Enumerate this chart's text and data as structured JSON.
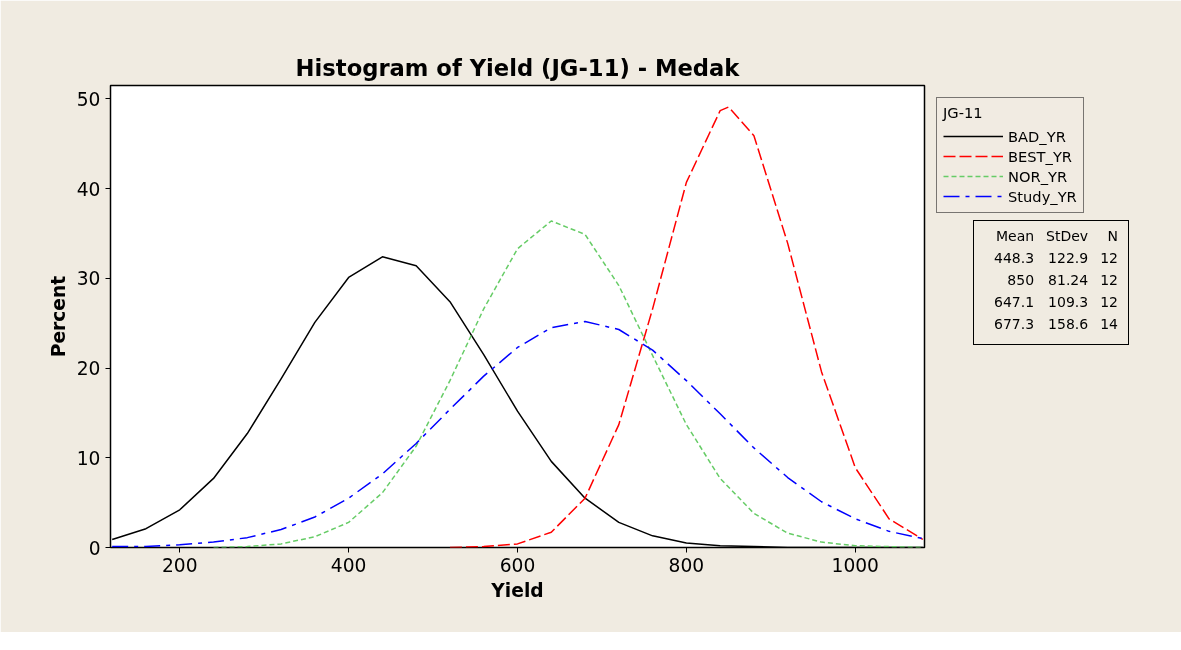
{
  "chart_data": {
    "type": "line",
    "title": "Histogram of Yield (JG-11) - Medak",
    "xlabel": "Yield",
    "ylabel": "Percent",
    "legend_title": "JG-11",
    "x": [
      120,
      160,
      200,
      240,
      280,
      320,
      360,
      400,
      440,
      480,
      520,
      560,
      600,
      640,
      680,
      720,
      760,
      800,
      840,
      880,
      920,
      960,
      1000,
      1040,
      1080
    ],
    "series": [
      {
        "name": "BAD_YR",
        "color": "#000000",
        "line_style": "solid",
        "values": [
          0.9,
          2.1,
          4.2,
          7.7,
          12.7,
          18.8,
          25.1,
          30.1,
          32.4,
          31.4,
          27.4,
          21.5,
          15.2,
          9.6,
          5.5,
          2.8,
          1.3,
          0.5,
          0.2,
          0.1,
          0,
          0,
          0,
          0,
          0
        ]
      },
      {
        "name": "BEST_YR",
        "color": "#ff0000",
        "line_style": "dashed",
        "x": [
          520,
          560,
          600,
          640,
          680,
          720,
          760,
          800,
          840,
          850,
          880,
          920,
          960,
          1000,
          1040,
          1080
        ],
        "values": [
          0,
          0.1,
          0.4,
          1.7,
          5.5,
          13.7,
          26.6,
          40.7,
          48.7,
          49.1,
          45.9,
          33.9,
          19.6,
          8.9,
          3.2,
          0.9
        ]
      },
      {
        "name": "NOR_YR",
        "color": "#66cc66",
        "line_style": "dotted",
        "x": [
          240,
          280,
          320,
          360,
          400,
          440,
          480,
          520,
          560,
          600,
          640,
          680,
          720,
          760,
          800,
          840,
          880,
          920,
          960,
          1000,
          1040,
          1080
        ],
        "values": [
          0,
          0.1,
          0.4,
          1.2,
          2.8,
          6.1,
          11.3,
          18.6,
          26.6,
          33.3,
          36.4,
          34.9,
          29.2,
          21.4,
          13.7,
          7.7,
          3.8,
          1.6,
          0.6,
          0.2,
          0.1,
          0
        ]
      },
      {
        "name": "Study_YR",
        "color": "#0000ff",
        "line_style": "dashdot",
        "values": [
          0.1,
          0.1,
          0.3,
          0.6,
          1.1,
          2.0,
          3.4,
          5.5,
          8.2,
          11.6,
          15.4,
          19.1,
          22.3,
          24.5,
          25.2,
          24.3,
          22.0,
          18.6,
          14.9,
          11.1,
          7.8,
          5.1,
          3.2,
          1.8,
          1.0
        ]
      }
    ],
    "xlim": [
      118,
      1082
    ],
    "xticks": [
      200,
      400,
      600,
      800,
      1000
    ],
    "ylim": [
      0,
      51.5
    ],
    "yticks": [
      0,
      10,
      20,
      30,
      40,
      50
    ],
    "grid": false,
    "legend": "right",
    "annotations": [
      "Mean StDev N",
      "448.3 122.9 12",
      "850 81.24 12",
      "647.1 109.3 12",
      "677.3 158.6 14"
    ]
  }
}
